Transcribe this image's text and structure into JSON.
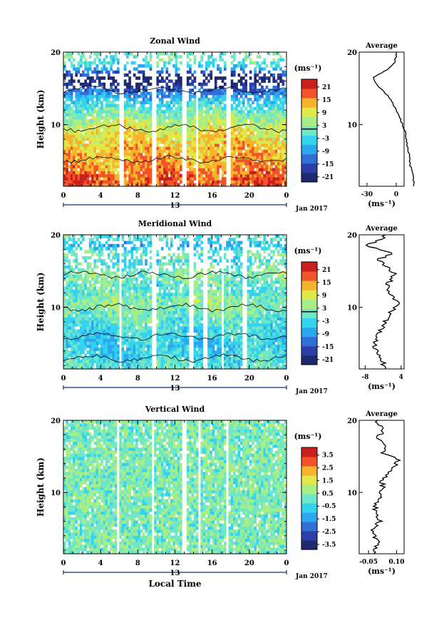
{
  "panels": [
    {
      "title": "Zonal Wind",
      "ylabel": "Height (km)",
      "y_ticks": [
        10,
        20
      ],
      "x_ticks": [
        "0",
        "4",
        "8",
        "12",
        "16",
        "20",
        "0"
      ],
      "date_label": "13",
      "month_label": "Jan 2017",
      "unit_label": "(ms⁻¹)",
      "colorbar_ticks": [
        "21",
        "15",
        "9",
        "3",
        "-3",
        "-9",
        "-15",
        "-21"
      ],
      "avg_title": "Average",
      "avg_x_ticks": [
        "-30",
        "0"
      ],
      "avg_unit": "(ms⁻¹)"
    },
    {
      "title": "Meridional Wind",
      "ylabel": "Height (km)",
      "y_ticks": [
        10,
        20
      ],
      "x_ticks": [
        "0",
        "4",
        "8",
        "12",
        "16",
        "20",
        "0"
      ],
      "date_label": "13",
      "month_label": "Jan 2017",
      "unit_label": "(ms⁻¹)",
      "colorbar_ticks": [
        "21",
        "15",
        "9",
        "3",
        "-3",
        "-9",
        "-15",
        "-21"
      ],
      "avg_title": "Average",
      "avg_x_ticks": [
        "-8",
        "4"
      ],
      "avg_unit": "(ms⁻¹)"
    },
    {
      "title": "Vertical Wind",
      "ylabel": "Height (km)",
      "y_ticks": [
        10,
        20
      ],
      "x_ticks": [
        "0",
        "4",
        "8",
        "12",
        "16",
        "20",
        "0"
      ],
      "date_label": "13",
      "month_label": "Jan 2017",
      "unit_label": "(ms⁻¹)",
      "colorbar_ticks": [
        "3.5",
        "2.5",
        "1.5",
        "0.5",
        "-0.5",
        "-1.5",
        "-2.5",
        "-3.5"
      ],
      "avg_title": "Average",
      "avg_x_ticks": [
        "-0.05",
        "0.10"
      ],
      "avg_unit": "(ms⁻¹)"
    }
  ],
  "xlabel": "Local Time",
  "colormap": [
    "#1f2a6e",
    "#2c3fa8",
    "#2f6fd6",
    "#2aa7ee",
    "#33d3f0",
    "#6fe6c8",
    "#a8ee86",
    "#e0e84a",
    "#f7b32c",
    "#f2542a",
    "#c9201e"
  ],
  "chart_data": [
    {
      "type": "heatmap",
      "title": "Zonal Wind",
      "xlabel": "Local Time",
      "ylabel": "Height (km)",
      "xlim": [
        0,
        24
      ],
      "ylim": [
        1.5,
        20
      ],
      "clim": [
        -24,
        24
      ],
      "gaps": [
        [
          6,
          6.4
        ],
        [
          9.6,
          10.1
        ],
        [
          12.8,
          13.2
        ],
        [
          14.2,
          14.6
        ],
        [
          17.6,
          18.0
        ]
      ],
      "profile_km": [
        1.5,
        3,
        4.5,
        6,
        7.5,
        9,
        10.5,
        11.5,
        12.5,
        13.5,
        14.5,
        15.5,
        16.5,
        17.5,
        18.5,
        19.5
      ],
      "profile_values": [
        18,
        17,
        14,
        13,
        11,
        9,
        5,
        2,
        -2,
        -6,
        -12,
        -20,
        -24,
        -10,
        -2,
        0
      ],
      "avg_xlim": [
        -38,
        8
      ],
      "contour_level": 3
    },
    {
      "type": "heatmap",
      "title": "Meridional Wind",
      "xlabel": "Local Time",
      "ylabel": "Height (km)",
      "xlim": [
        0,
        24
      ],
      "ylim": [
        1.5,
        20
      ],
      "clim": [
        -24,
        24
      ],
      "gaps": [
        [
          6,
          6.3
        ],
        [
          9.6,
          10.0
        ],
        [
          13.4,
          14.0
        ],
        [
          15.0,
          15.4
        ],
        [
          17.0,
          17.3
        ],
        [
          19.3,
          19.7
        ]
      ],
      "profile_km": [
        1.5,
        3,
        4.5,
        6,
        7.5,
        9,
        10.5,
        11.5,
        12.5,
        13.5,
        14.5,
        15.5,
        16.5,
        17.5,
        18.5,
        19.5
      ],
      "profile_values": [
        -1,
        -3,
        -5,
        -4,
        -2,
        0,
        3,
        1,
        -1,
        0,
        2,
        0,
        -4,
        1,
        -8,
        -2
      ],
      "avg_xlim": [
        -10,
        5
      ],
      "contour_level": 0
    },
    {
      "type": "heatmap",
      "title": "Vertical Wind",
      "xlabel": "Local Time",
      "ylabel": "Height (km)",
      "xlim": [
        0,
        24
      ],
      "ylim": [
        1.5,
        20
      ],
      "clim": [
        -4,
        4
      ],
      "gaps": [
        [
          5.7,
          6.0
        ],
        [
          9.4,
          9.8
        ],
        [
          12.8,
          13.2
        ],
        [
          14.4,
          14.7
        ],
        [
          17.5,
          17.8
        ]
      ],
      "profile_km": [
        1.5,
        3,
        4.5,
        6,
        7.5,
        9,
        10.5,
        11.5,
        12.5,
        13.5,
        14.5,
        15.5,
        16.5,
        17.5,
        18.5,
        19.5
      ],
      "profile_values": [
        -0.02,
        0.0,
        -0.03,
        0.01,
        -0.02,
        0.0,
        0.03,
        0.02,
        0.05,
        0.08,
        0.12,
        0.02,
        0.05,
        -0.01,
        0.03,
        0.0
      ],
      "avg_xlim": [
        -0.1,
        0.14
      ],
      "contour_level": null
    }
  ]
}
